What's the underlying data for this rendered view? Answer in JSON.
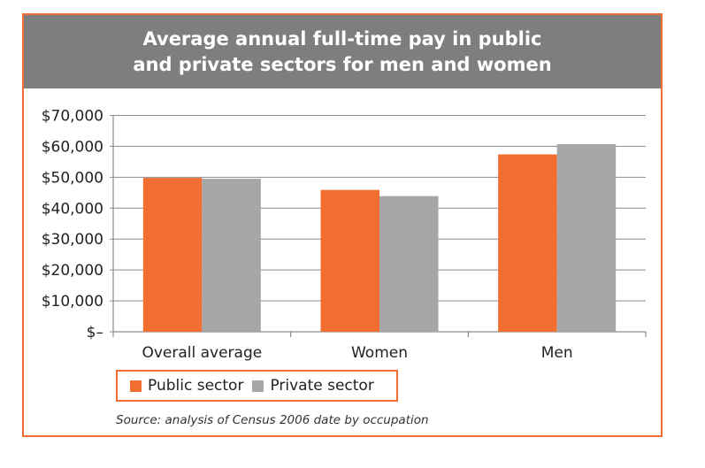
{
  "chart_data": {
    "type": "bar",
    "title_lines": [
      "Average annual full-time pay in public",
      "and private sectors for men and women"
    ],
    "categories": [
      "Overall average",
      "Women",
      "Men"
    ],
    "series": [
      {
        "name": "Public sector",
        "color": "#f26d30",
        "values": [
          49800,
          45900,
          57400
        ]
      },
      {
        "name": "Private sector",
        "color": "#a5a6a8",
        "values": [
          49500,
          43900,
          60700
        ]
      }
    ],
    "ylim": [
      0,
      70000
    ],
    "y_ticks": [
      0,
      10000,
      20000,
      30000,
      40000,
      50000,
      60000,
      70000
    ],
    "y_tick_labels": [
      "$–",
      "$10,000",
      "$20,000",
      "$30,000",
      "$40,000",
      "$50,000",
      "$60,000",
      "$70,000"
    ],
    "grid": true,
    "legend_position": "bottom-left",
    "source": "Source: analysis of Census 2006 date by occupation"
  }
}
